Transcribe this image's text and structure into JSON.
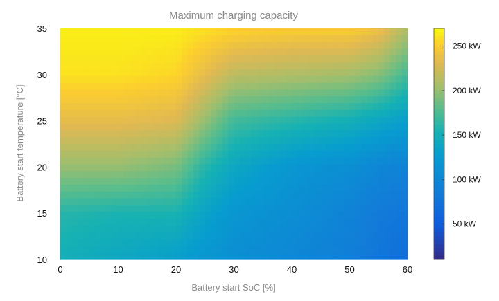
{
  "chart_data": {
    "type": "heatmap",
    "title": "Maximum charging capacity",
    "xlabel": "Battery start SoC [%]",
    "ylabel": "Battery start temperature [°C]",
    "xlim": [
      0,
      60
    ],
    "ylim": [
      10,
      35
    ],
    "x_ticks": [
      "0",
      "10",
      "20",
      "30",
      "40",
      "50",
      "60"
    ],
    "x_tick_values": [
      0,
      10,
      20,
      30,
      40,
      50,
      60
    ],
    "y_ticks": [
      "10",
      "15",
      "20",
      "25",
      "30",
      "35"
    ],
    "y_tick_values": [
      10,
      15,
      20,
      25,
      30,
      35
    ],
    "colorbar": {
      "min": 10,
      "max": 270,
      "ticks": [
        "50 kW",
        "100 kW",
        "150 kW",
        "200 kW",
        "250 kW"
      ],
      "tick_values": [
        50,
        100,
        150,
        200,
        250
      ],
      "colormap": "parula"
    },
    "x": [
      0,
      10,
      20,
      25,
      30,
      40,
      50,
      55,
      60
    ],
    "y": [
      10,
      15,
      20,
      25,
      30,
      35
    ],
    "z": [
      [
        150,
        140,
        130,
        120,
        110,
        100,
        90,
        80,
        70
      ],
      [
        160,
        155,
        155,
        135,
        120,
        110,
        95,
        85,
        80
      ],
      [
        200,
        200,
        190,
        160,
        140,
        120,
        110,
        100,
        95
      ],
      [
        235,
        235,
        230,
        200,
        170,
        160,
        150,
        140,
        130
      ],
      [
        260,
        260,
        255,
        235,
        215,
        210,
        205,
        195,
        170
      ],
      [
        265,
        265,
        265,
        260,
        255,
        250,
        250,
        240,
        210
      ]
    ]
  }
}
